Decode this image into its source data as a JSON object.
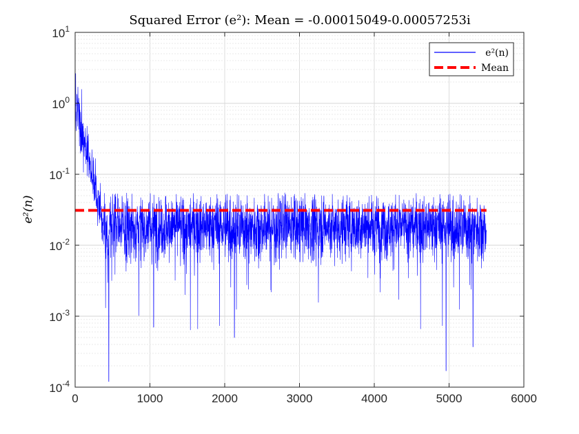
{
  "chart_data": {
    "type": "line",
    "title": "Squared Error (e²): Mean = -0.00015049-0.00057253i",
    "xlabel": "",
    "ylabel": "e²(n)",
    "xlim": [
      0,
      6000
    ],
    "ylim": [
      0.0001,
      10
    ],
    "yscale": "log",
    "grid": true,
    "legend_position": "top-right",
    "x_ticks": [
      "0",
      "1000",
      "2000",
      "3000",
      "4000",
      "5000",
      "6000"
    ],
    "y_ticks": [
      {
        "base": "10",
        "exp": "1"
      },
      {
        "base": "10",
        "exp": "0"
      },
      {
        "base": "10",
        "exp": "-1"
      },
      {
        "base": "10",
        "exp": "-2"
      },
      {
        "base": "10",
        "exp": "-3"
      },
      {
        "base": "10",
        "exp": "-4"
      }
    ],
    "series": [
      {
        "name": "e²(n)",
        "color": "#0000ff",
        "style": "solid",
        "n_samples": 5500,
        "initial_value": 1.0,
        "convergence_sample": 450,
        "steady_state_median": 0.018,
        "steady_state_max": 0.055,
        "notable_minima": [
          {
            "x": 450,
            "y": 0.00012
          },
          {
            "x": 1050,
            "y": 0.0007
          },
          {
            "x": 2130,
            "y": 0.0005
          },
          {
            "x": 4960,
            "y": 0.00017
          },
          {
            "x": 5320,
            "y": 0.00037
          }
        ]
      },
      {
        "name": "Mean",
        "color": "#ff0000",
        "style": "dashed",
        "value": 0.031,
        "x_range": [
          0,
          5500
        ]
      }
    ]
  }
}
